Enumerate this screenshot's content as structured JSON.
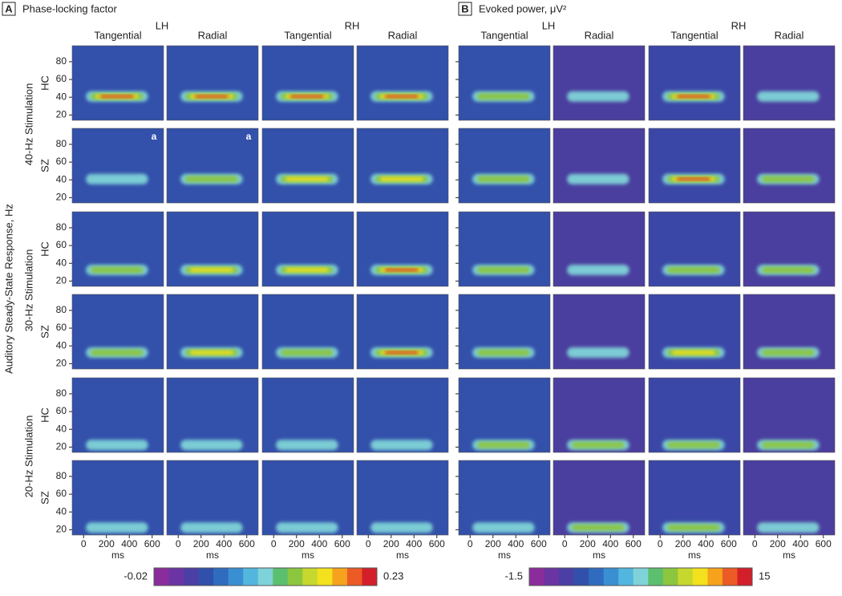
{
  "panels": [
    {
      "label": "A",
      "title": "Phase-locking factor",
      "colorbar_range": [
        -0.02,
        0.23
      ]
    },
    {
      "label": "B",
      "title": "Evoked power, μV²",
      "colorbar_range": [
        -1.5,
        15
      ]
    }
  ],
  "hemispheres": [
    "LH",
    "RH"
  ],
  "orientations": [
    "Tangential",
    "Radial"
  ],
  "y_axis_label": "Auditory Steady-State Response, Hz",
  "stimulations": [
    "40-Hz Stimulation",
    "30-Hz Stimulation",
    "20-Hz Stimulation"
  ],
  "groups": [
    "HC",
    "SZ"
  ],
  "annotation": "a",
  "x_label": "ms",
  "ylim": [
    14,
    98
  ],
  "yticks": [
    20,
    40,
    60,
    80
  ],
  "xlim": [
    -100,
    700
  ],
  "xticks": [
    0,
    200,
    400,
    600
  ],
  "colormap": [
    "#8b2c9c",
    "#6a35a2",
    "#4b3fa6",
    "#3050ac",
    "#2f6cc0",
    "#3a8fd2",
    "#52b6de",
    "#7fd3d8",
    "#5cbf6e",
    "#8cc63f",
    "#c6d82e",
    "#f3e11e",
    "#f6a21c",
    "#ec5a25",
    "#d31f2a"
  ]
}
